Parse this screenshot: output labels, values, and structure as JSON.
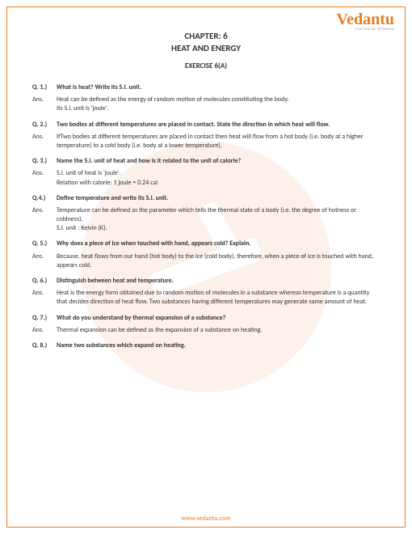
{
  "brand": {
    "name": "Vedantu",
    "tagline": "LIVE ONLINE TUTORING"
  },
  "header": {
    "chapter_label": "CHAPTER: 6",
    "chapter_name": "HEAT AND ENERGY",
    "exercise": "EXERCISE 6(A)"
  },
  "qa": [
    {
      "qlabel": "Q. 1.)",
      "question": "What is heat? Write its S.I. unit.",
      "alabel": "Ans.",
      "answer": "Heat can be defined as the energy of random motion of molecules constituting the body.\nIts S.I. unit is 'joule'."
    },
    {
      "qlabel": "Q. 2.)",
      "question": "Two bodies at different temperatures are placed in contact. State the direction in which heat will flow.",
      "alabel": "Ans.",
      "answer": "IfTwo bodies at different temperatures are placed in contact then heat will flow from a hot body (i.e. body at a higher temperature) to a cold body (i.e. body at a lower temperature)."
    },
    {
      "qlabel": "Q. 3.)",
      "question": "Name the S.I. unit of heat and how is it related to the unit of calorie?",
      "alabel": "Ans.",
      "answer": "S.I. unit of heat is 'joule'.\nRelation with calorie: 1 joule = 0.24 cal"
    },
    {
      "qlabel": "Q.4.)",
      "question": "Define temperature and write its S.I. unit.",
      "alabel": "Ans.",
      "answer": "Temperature can be defined as the parameter which tells the thermal state of a body (i.e. the degree of hotness or coldness).\nS.I. unit : Kelvin (K)."
    },
    {
      "qlabel": "Q. 5.)",
      "question": "Why does a piece of ice when touched with hand, appears cold? Explain.",
      "alabel": "Ans.",
      "answer": "Because, heat flows from our hand (hot body) to the ice (cold body), therefore, when a piece of ice is touched with hand, appears cold."
    },
    {
      "qlabel": "Q. 6.)",
      "question": "Distinguish between heat and temperature.",
      "alabel": "Ans.",
      "answer": "Heat is the energy form obtained due to random motion of molecules in a substance whereas temperature is a quantity that decides direction of heat flow. Two substances having different temperatures may generate same amount of heat."
    },
    {
      "qlabel": "Q. 7.)",
      "question": "What do you understand by thermal expansion of a substance?",
      "alabel": "Ans.",
      "answer": "Thermal expansion can be defined as the expansion of a substance on heating."
    },
    {
      "qlabel": "Q. 8.)",
      "question": "Name two substances which expand on heating.",
      "alabel": "",
      "answer": ""
    }
  ],
  "footer": {
    "url": "www.vedantu.com"
  }
}
